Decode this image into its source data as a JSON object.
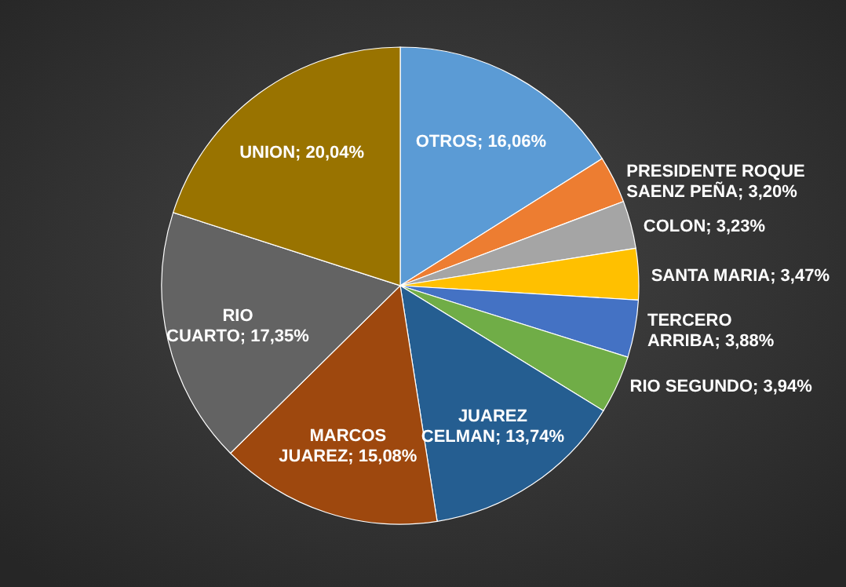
{
  "chart_data": {
    "type": "pie",
    "categories": [
      "OTROS",
      "PRESIDENTE ROQUE SAENZ PEÑA",
      "COLON",
      "SANTA MARIA",
      "TERCERO ARRIBA",
      "RIO SEGUNDO",
      "JUAREZ CELMAN",
      "MARCOS JUAREZ",
      "RIO CUARTO",
      "UNION"
    ],
    "values": [
      16.06,
      3.2,
      3.23,
      3.47,
      3.88,
      3.94,
      13.74,
      15.08,
      17.35,
      20.04
    ],
    "value_labels": [
      "16,06%",
      "3,20%",
      "3,23%",
      "3,47%",
      "3,88%",
      "3,94%",
      "13,74%",
      "15,08%",
      "17,35%",
      "20,04%"
    ],
    "colors": [
      "#5b9bd5",
      "#ed7d31",
      "#a5a5a5",
      "#ffc000",
      "#4472c4",
      "#70ad47",
      "#255e91",
      "#9e480e",
      "#636363",
      "#997300"
    ]
  }
}
